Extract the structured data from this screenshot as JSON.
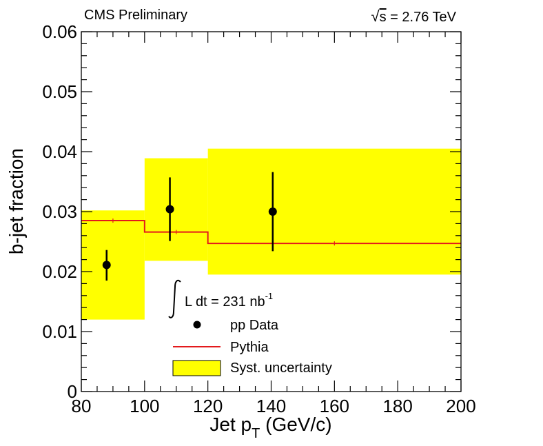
{
  "header": {
    "experiment": "CMS Preliminary",
    "energy_prefix": "s",
    "energy_value": " = 2.76 TeV"
  },
  "chart_data": {
    "type": "scatter",
    "title": "",
    "xlabel": "Jet p",
    "xlabel_sub": "T",
    "xlabel_unit": " (GeV/c)",
    "ylabel": "b-jet fraction",
    "xlim": [
      80,
      200
    ],
    "ylim": [
      0,
      0.06
    ],
    "x_major_ticks": [
      80,
      100,
      120,
      140,
      160,
      180,
      200
    ],
    "x_tick_labels": [
      "80",
      "100",
      "120",
      "140",
      "160",
      "180",
      "200"
    ],
    "y_major_ticks": [
      0,
      0.01,
      0.02,
      0.03,
      0.04,
      0.05,
      0.06
    ],
    "y_tick_labels": [
      "0",
      "0.01",
      "0.02",
      "0.03",
      "0.04",
      "0.05",
      "0.06"
    ],
    "bins": [
      [
        80,
        100
      ],
      [
        100,
        120
      ],
      [
        120,
        200
      ]
    ],
    "series": [
      {
        "name": "pp Data",
        "kind": "points",
        "color": "#000000",
        "points": [
          {
            "x": 88,
            "y": 0.0211,
            "ylo": 0.0185,
            "yhi": 0.0236
          },
          {
            "x": 108,
            "y": 0.0304,
            "ylo": 0.0251,
            "yhi": 0.0357
          },
          {
            "x": 140.5,
            "y": 0.03,
            "ylo": 0.0234,
            "yhi": 0.0366
          }
        ]
      },
      {
        "name": "Pythia",
        "kind": "step",
        "color": "#e31a1c",
        "values": [
          0.0285,
          0.0266,
          0.0247
        ]
      },
      {
        "name": "Syst. uncertainty",
        "kind": "band",
        "color": "#ffff00",
        "lo": [
          0.012,
          0.0218,
          0.0195
        ],
        "hi": [
          0.0302,
          0.0389,
          0.0405
        ]
      }
    ],
    "legend": {
      "position": "bottom-center",
      "lumi_prefix": "L dt = 231 nb",
      "lumi_exp": "-1",
      "entries": [
        "pp Data",
        "Pythia",
        "Syst. uncertainty"
      ]
    }
  }
}
